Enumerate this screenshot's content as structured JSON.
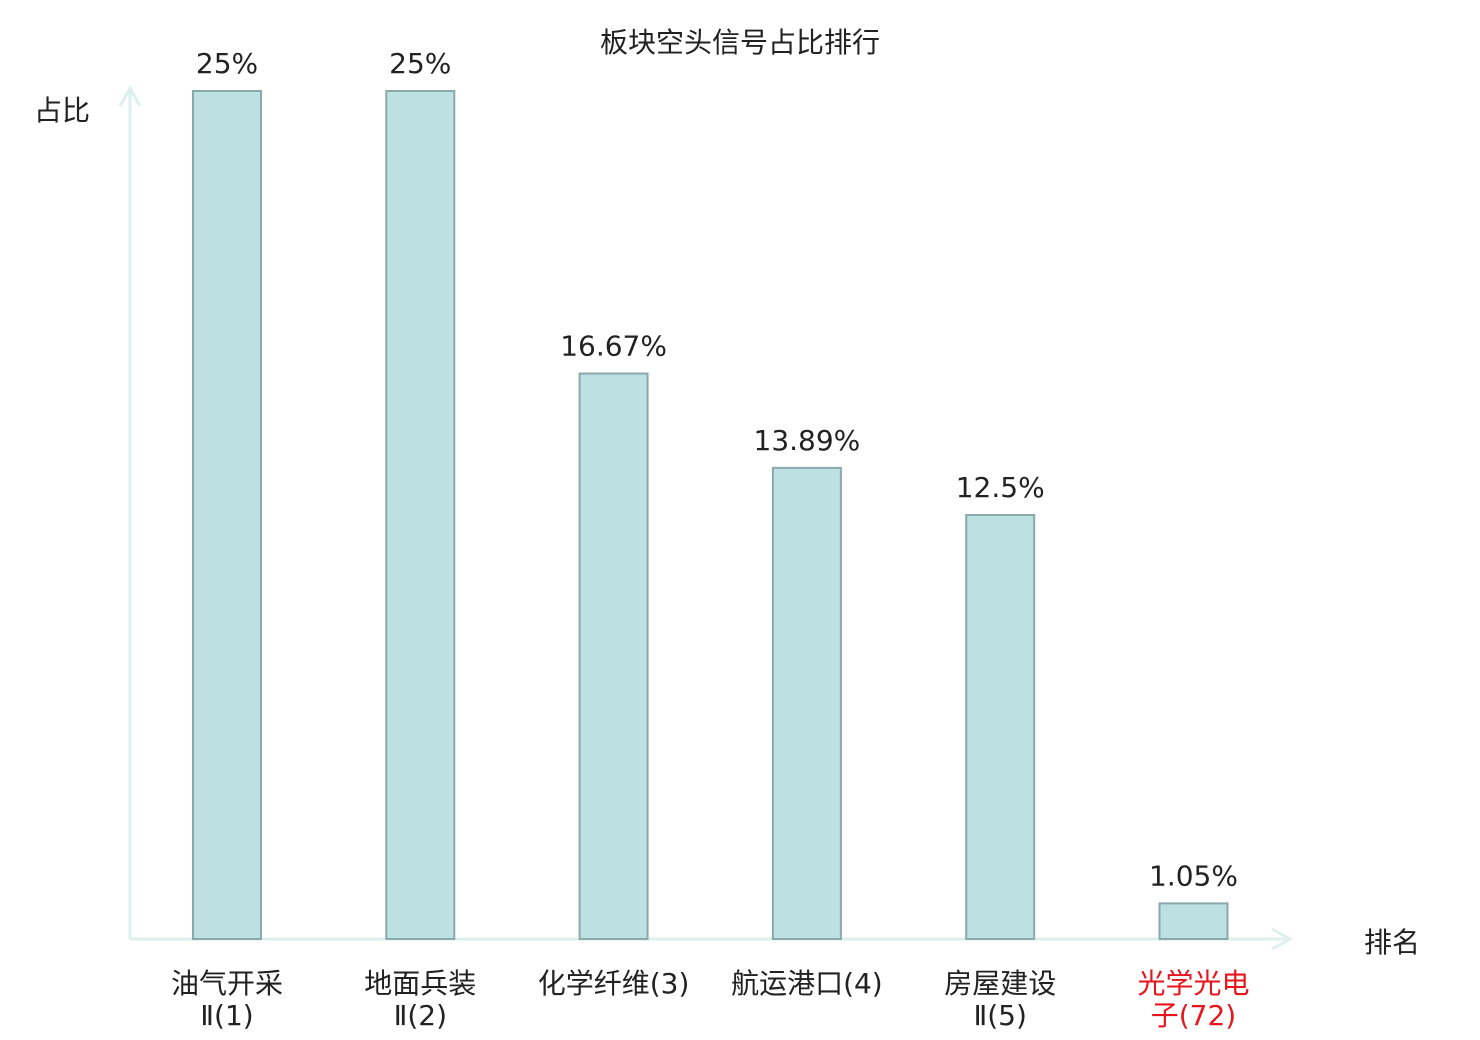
{
  "chart_data": {
    "type": "bar",
    "title": "板块空头信号占比排行",
    "y_label": "占比",
    "x_label": "排名",
    "categories": [
      [
        "油气开采",
        "Ⅱ(1)"
      ],
      [
        "地面兵装",
        "Ⅱ(2)"
      ],
      [
        "化学纤维(3)"
      ],
      [
        "航运港口(4)"
      ],
      [
        "房屋建设",
        "Ⅱ(5)"
      ],
      [
        "光学光电",
        "子(72)"
      ]
    ],
    "values": [
      25,
      25,
      16.67,
      13.89,
      12.5,
      1.05
    ],
    "value_labels": [
      "25%",
      "25%",
      "16.67%",
      "13.89%",
      "12.5%",
      "1.05%"
    ],
    "color": "#bde0e3",
    "edge_color": "#8aa9ab",
    "axis_color": "#ddf0ee",
    "label_color": "#222222",
    "highlight_color": "#e8141b",
    "highlight_index": 5,
    "ylim": [
      0,
      25
    ]
  }
}
